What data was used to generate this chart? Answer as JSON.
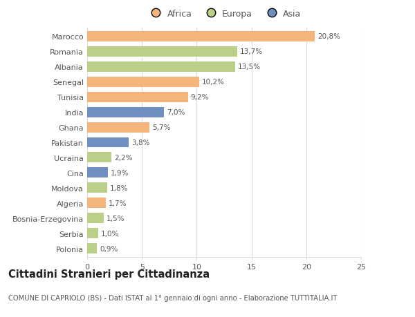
{
  "countries": [
    "Marocco",
    "Romania",
    "Albania",
    "Senegal",
    "Tunisia",
    "India",
    "Ghana",
    "Pakistan",
    "Ucraina",
    "Cina",
    "Moldova",
    "Algeria",
    "Bosnia-Erzegovina",
    "Serbia",
    "Polonia"
  ],
  "values": [
    20.8,
    13.7,
    13.5,
    10.2,
    9.2,
    7.0,
    5.7,
    3.8,
    2.2,
    1.9,
    1.8,
    1.7,
    1.5,
    1.0,
    0.9
  ],
  "labels": [
    "20,8%",
    "13,7%",
    "13,5%",
    "10,2%",
    "9,2%",
    "7,0%",
    "5,7%",
    "3,8%",
    "2,2%",
    "1,9%",
    "1,8%",
    "1,7%",
    "1,5%",
    "1,0%",
    "0,9%"
  ],
  "continents": [
    "Africa",
    "Europa",
    "Europa",
    "Africa",
    "Africa",
    "Asia",
    "Africa",
    "Asia",
    "Europa",
    "Asia",
    "Europa",
    "Africa",
    "Europa",
    "Europa",
    "Europa"
  ],
  "colors": {
    "Africa": "#F5B57A",
    "Europa": "#BACF87",
    "Asia": "#6E8FC0"
  },
  "xlim": [
    0,
    25
  ],
  "xticks": [
    0,
    5,
    10,
    15,
    20,
    25
  ],
  "title": "Cittadini Stranieri per Cittadinanza",
  "subtitle": "COMUNE DI CAPRIOLO (BS) - Dati ISTAT al 1° gennaio di ogni anno - Elaborazione TUTTITALIA.IT",
  "background_color": "#ffffff",
  "bar_height": 0.68,
  "grid_color": "#dddddd",
  "text_color": "#555555",
  "label_fontsize": 7.5,
  "ytick_fontsize": 8.0,
  "xtick_fontsize": 8.0,
  "title_fontsize": 10.5,
  "subtitle_fontsize": 7.2
}
